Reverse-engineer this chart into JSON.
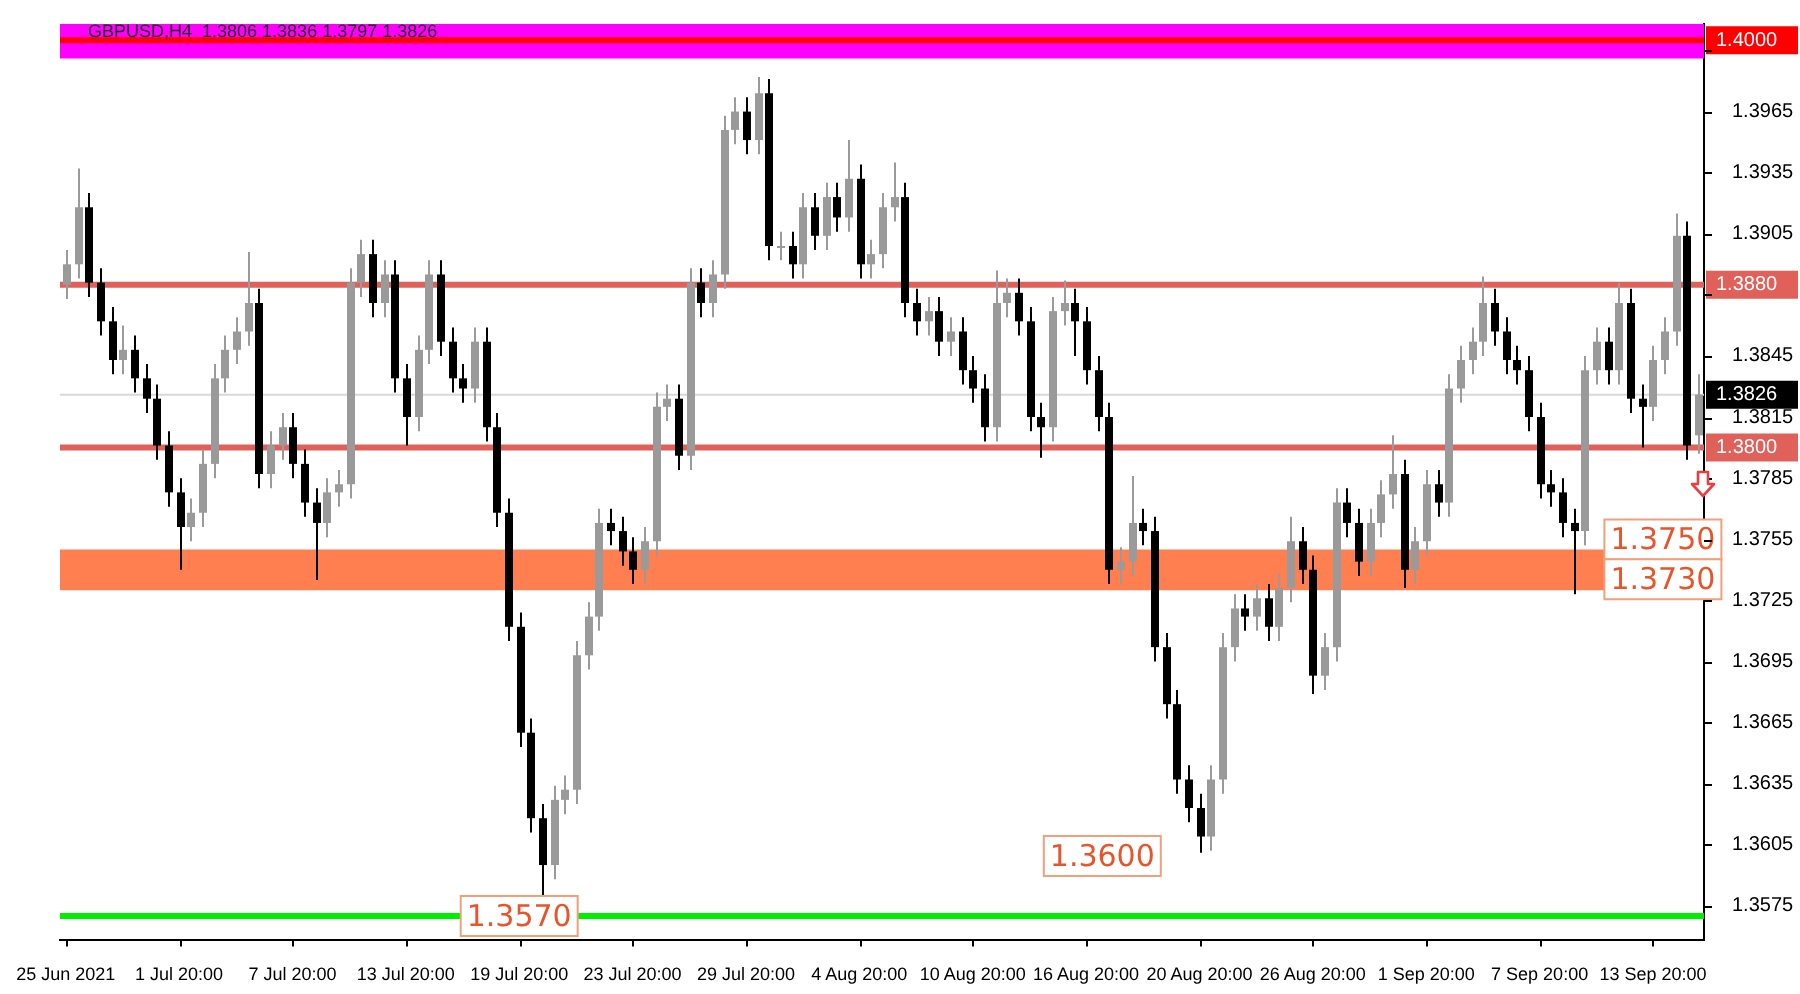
{
  "chart_data": {
    "type": "candlestick",
    "title": "GBPUSD,H4  1.3806 1.3836 1.3797 1.3826",
    "colors": [
      "#9a9a9a",
      "#9a9a9a",
      "#000000",
      "#000000",
      "#000000",
      "#9a9a9a",
      "#000000",
      "#000000",
      "#000000",
      "#000000",
      "#000000",
      "#9a9a9a",
      "#9a9a9a",
      "#9a9a9a",
      "#9a9a9a",
      "#9a9a9a",
      "#9a9a9a",
      "#000000",
      "#9a9a9a",
      "#9a9a9a",
      "#000000",
      "#000000",
      "#000000",
      "#9a9a9a",
      "#9a9a9a",
      "#9a9a9a",
      "#9a9a9a",
      "#000000",
      "#9a9a9a",
      "#000000",
      "#000000",
      "#9a9a9a",
      "#9a9a9a",
      "#000000",
      "#000000",
      "#000000",
      "#9a9a9a",
      "#000000",
      "#000000",
      "#000000",
      "#000000",
      "#000000",
      "#000000",
      "#9a9a9a",
      "#9a9a9a",
      "#9a9a9a",
      "#9a9a9a",
      "#9a9a9a",
      "#000000",
      "#000000",
      "#000000",
      "#9a9a9a",
      "#9a9a9a",
      "#9a9a9a",
      "#000000",
      "#9a9a9a",
      "#000000",
      "#9a9a9a",
      "#9a9a9a",
      "#9a9a9a",
      "#000000",
      "#9a9a9a",
      "#000000",
      "#9a9a9a",
      "#000000",
      "#9a9a9a",
      "#000000",
      "#9a9a9a",
      "#000000",
      "#9a9a9a",
      "#000000",
      "#9a9a9a",
      "#9a9a9a",
      "#9a9a9a",
      "#000000",
      "#000000",
      "#9a9a9a",
      "#000000",
      "#9a9a9a",
      "#000000",
      "#000000",
      "#000000",
      "#9a9a9a",
      "#9a9a9a",
      "#000000",
      "#000000",
      "#000000",
      "#9a9a9a",
      "#9a9a9a",
      "#000000",
      "#000000",
      "#000000",
      "#000000",
      "#9a9a9a",
      "#9a9a9a",
      "#000000",
      "#000000",
      "#000000",
      "#000000",
      "#000000",
      "#000000",
      "#9a9a9a",
      "#9a9a9a",
      "#9a9a9a",
      "#000000",
      "#9a9a9a",
      "#000000",
      "#9a9a9a",
      "#9a9a9a",
      "#000000",
      "#000000",
      "#9a9a9a",
      "#9a9a9a",
      "#000000",
      "#000000",
      "#9a9a9a",
      "#9a9a9a",
      "#9a9a9a",
      "#000000",
      "#9a9a9a",
      "#9a9a9a",
      "#000000",
      "#9a9a9a",
      "#9a9a9a",
      "#9a9a9a",
      "#9a9a9a",
      "#000000",
      "#000000",
      "#000000",
      "#000000",
      "#000000",
      "#000000",
      "#000000",
      "#000000",
      "#9a9a9a",
      "#9a9a9a",
      "#000000",
      "#9a9a9a",
      "#000000",
      "#000000",
      "#9a9a9a",
      "#9a9a9a",
      "#9a9a9a",
      "#000000",
      "#9a9a9a"
    ],
    "categories": [
      "25 Jun 2021",
      null,
      null,
      null,
      null,
      null,
      null,
      null,
      null,
      null,
      "1 Jul 20:00",
      null,
      null,
      null,
      null,
      null,
      null,
      null,
      null,
      null,
      "7 Jul 20:00",
      null,
      null,
      null,
      null,
      null,
      null,
      null,
      null,
      null,
      "13 Jul 20:00",
      null,
      null,
      null,
      null,
      null,
      null,
      null,
      null,
      null,
      "19 Jul 20:00",
      null,
      null,
      null,
      null,
      null,
      null,
      null,
      null,
      null,
      "23 Jul 20:00",
      null,
      null,
      null,
      null,
      null,
      null,
      null,
      null,
      null,
      "29 Jul 20:00",
      null,
      null,
      null,
      null,
      null,
      null,
      null,
      null,
      null,
      "4 Aug 20:00",
      null,
      null,
      null,
      null,
      null,
      null,
      null,
      null,
      null,
      "10 Aug 20:00",
      null,
      null,
      null,
      null,
      null,
      null,
      null,
      null,
      null,
      "16 Aug 20:00",
      null,
      null,
      null,
      null,
      null,
      null,
      null,
      null,
      null,
      "20 Aug 20:00",
      null,
      null,
      null,
      null,
      null,
      null,
      null,
      null,
      null,
      "26 Aug 20:00",
      null,
      null,
      null,
      null,
      null,
      null,
      null,
      null,
      null,
      "1 Sep 20:00",
      null,
      null,
      null,
      null,
      null,
      null,
      null,
      null,
      null,
      "7 Sep 20:00",
      null,
      null,
      null,
      null,
      null,
      null,
      null,
      null,
      null,
      "13 Sep 20:00",
      null,
      null,
      null,
      null
    ],
    "ohlc": [
      [
        1.388,
        1.3897,
        1.3873,
        1.389
      ],
      [
        1.389,
        1.3937,
        1.3883,
        1.3918
      ],
      [
        1.3918,
        1.3925,
        1.3874,
        1.3881
      ],
      [
        1.3881,
        1.3888,
        1.3855,
        1.3862
      ],
      [
        1.3862,
        1.3869,
        1.3836,
        1.3843
      ],
      [
        1.3843,
        1.386,
        1.3836,
        1.3848
      ],
      [
        1.3848,
        1.3855,
        1.3827,
        1.3834
      ],
      [
        1.3834,
        1.3841,
        1.3817,
        1.3824
      ],
      [
        1.3824,
        1.3831,
        1.3794,
        1.3801
      ],
      [
        1.3801,
        1.3808,
        1.3771,
        1.3778
      ],
      [
        1.3778,
        1.3785,
        1.374,
        1.3761
      ],
      [
        1.3761,
        1.3775,
        1.3754,
        1.3768
      ],
      [
        1.3768,
        1.3799,
        1.3761,
        1.3792
      ],
      [
        1.3792,
        1.3841,
        1.3785,
        1.3834
      ],
      [
        1.3834,
        1.3855,
        1.3827,
        1.3848
      ],
      [
        1.3848,
        1.3864,
        1.3841,
        1.3857
      ],
      [
        1.3857,
        1.3896,
        1.385,
        1.3871
      ],
      [
        1.3871,
        1.3878,
        1.378,
        1.3787
      ],
      [
        1.3787,
        1.3808,
        1.378,
        1.3801
      ],
      [
        1.3801,
        1.3817,
        1.3794,
        1.381
      ],
      [
        1.381,
        1.3817,
        1.3785,
        1.3792
      ],
      [
        1.3792,
        1.3799,
        1.3766,
        1.3773
      ],
      [
        1.3773,
        1.378,
        1.3735,
        1.3763
      ],
      [
        1.3763,
        1.3785,
        1.3756,
        1.3778
      ],
      [
        1.3778,
        1.3789,
        1.3771,
        1.3782
      ],
      [
        1.3782,
        1.3888,
        1.3775,
        1.3881
      ],
      [
        1.3881,
        1.3902,
        1.3874,
        1.3895
      ],
      [
        1.3895,
        1.3902,
        1.3864,
        1.3871
      ],
      [
        1.3871,
        1.3892,
        1.3864,
        1.3885
      ],
      [
        1.3885,
        1.3892,
        1.3827,
        1.3834
      ],
      [
        1.3834,
        1.3841,
        1.3801,
        1.3815
      ],
      [
        1.3815,
        1.3855,
        1.3808,
        1.3848
      ],
      [
        1.3848,
        1.3892,
        1.3841,
        1.3885
      ],
      [
        1.3885,
        1.3892,
        1.3845,
        1.3852
      ],
      [
        1.3852,
        1.3859,
        1.3827,
        1.3834
      ],
      [
        1.3834,
        1.3841,
        1.3822,
        1.3829
      ],
      [
        1.3829,
        1.3859,
        1.3822,
        1.3852
      ],
      [
        1.3852,
        1.3859,
        1.3803,
        1.381
      ],
      [
        1.381,
        1.3817,
        1.3761,
        1.3768
      ],
      [
        1.3768,
        1.3775,
        1.3705,
        1.3712
      ],
      [
        1.3712,
        1.3719,
        1.3653,
        1.366
      ],
      [
        1.366,
        1.3667,
        1.3611,
        1.3618
      ],
      [
        1.3618,
        1.3625,
        1.358,
        1.3595
      ],
      [
        1.3595,
        1.3634,
        1.3588,
        1.3627
      ],
      [
        1.3627,
        1.3639,
        1.362,
        1.3632
      ],
      [
        1.3632,
        1.3705,
        1.3625,
        1.3698
      ],
      [
        1.3698,
        1.3724,
        1.3691,
        1.3717
      ],
      [
        1.3717,
        1.377,
        1.371,
        1.3763
      ],
      [
        1.3763,
        1.377,
        1.3752,
        1.3759
      ],
      [
        1.3759,
        1.3766,
        1.3742,
        1.3749
      ],
      [
        1.3749,
        1.3756,
        1.3733,
        1.374
      ],
      [
        1.374,
        1.3761,
        1.3733,
        1.3754
      ],
      [
        1.3754,
        1.3827,
        1.3747,
        1.382
      ],
      [
        1.382,
        1.3831,
        1.3813,
        1.3824
      ],
      [
        1.3824,
        1.3831,
        1.3789,
        1.3796
      ],
      [
        1.3796,
        1.3888,
        1.3789,
        1.3881
      ],
      [
        1.3881,
        1.3888,
        1.3864,
        1.3871
      ],
      [
        1.3871,
        1.3892,
        1.3864,
        1.3885
      ],
      [
        1.3885,
        1.3963,
        1.3878,
        1.3956
      ],
      [
        1.3956,
        1.3972,
        1.3949,
        1.3965
      ],
      [
        1.3965,
        1.3972,
        1.3944,
        1.3951
      ],
      [
        1.3951,
        1.3982,
        1.3944,
        1.3974
      ],
      [
        1.3974,
        1.3981,
        1.3892,
        1.3899
      ],
      [
        1.3899,
        1.3906,
        1.3892,
        1.3899
      ],
      [
        1.3899,
        1.3906,
        1.3883,
        1.389
      ],
      [
        1.389,
        1.3925,
        1.3883,
        1.3918
      ],
      [
        1.3918,
        1.3925,
        1.3897,
        1.3904
      ],
      [
        1.3904,
        1.393,
        1.3897,
        1.3923
      ],
      [
        1.3923,
        1.393,
        1.3906,
        1.3913
      ],
      [
        1.3913,
        1.3951,
        1.3906,
        1.3932
      ],
      [
        1.3932,
        1.3939,
        1.3883,
        1.389
      ],
      [
        1.389,
        1.3902,
        1.3883,
        1.3895
      ],
      [
        1.3895,
        1.3925,
        1.3888,
        1.3918
      ],
      [
        1.3918,
        1.394,
        1.3911,
        1.3923
      ],
      [
        1.3923,
        1.393,
        1.3864,
        1.3871
      ],
      [
        1.3871,
        1.3878,
        1.3855,
        1.3862
      ],
      [
        1.3862,
        1.3874,
        1.3855,
        1.3867
      ],
      [
        1.3867,
        1.3874,
        1.3845,
        1.3852
      ],
      [
        1.3852,
        1.3864,
        1.3845,
        1.3857
      ],
      [
        1.3857,
        1.3864,
        1.3831,
        1.3838
      ],
      [
        1.3838,
        1.3845,
        1.3822,
        1.3829
      ],
      [
        1.3829,
        1.3836,
        1.3803,
        1.381
      ],
      [
        1.381,
        1.3887,
        1.3803,
        1.3871
      ],
      [
        1.3871,
        1.3883,
        1.3864,
        1.3876
      ],
      [
        1.3876,
        1.3883,
        1.3855,
        1.3862
      ],
      [
        1.3862,
        1.3869,
        1.3808,
        1.3815
      ],
      [
        1.3815,
        1.3822,
        1.3795,
        1.381
      ],
      [
        1.381,
        1.3874,
        1.3803,
        1.3867
      ],
      [
        1.3867,
        1.3882,
        1.386,
        1.3871
      ],
      [
        1.3871,
        1.3878,
        1.3845,
        1.3862
      ],
      [
        1.3862,
        1.3869,
        1.3831,
        1.3838
      ],
      [
        1.3838,
        1.3845,
        1.3808,
        1.3815
      ],
      [
        1.3815,
        1.3822,
        1.3733,
        1.374
      ],
      [
        1.374,
        1.3751,
        1.3733,
        1.3744
      ],
      [
        1.3744,
        1.3786,
        1.3737,
        1.3763
      ],
      [
        1.3763,
        1.377,
        1.3752,
        1.3759
      ],
      [
        1.3759,
        1.3766,
        1.3695,
        1.3702
      ],
      [
        1.3702,
        1.3709,
        1.3667,
        1.3674
      ],
      [
        1.3674,
        1.3681,
        1.363,
        1.3637
      ],
      [
        1.3637,
        1.3644,
        1.3616,
        1.3623
      ],
      [
        1.3623,
        1.363,
        1.3601,
        1.3609
      ],
      [
        1.3609,
        1.3644,
        1.3602,
        1.3637
      ],
      [
        1.3637,
        1.3709,
        1.363,
        1.3702
      ],
      [
        1.3702,
        1.3728,
        1.3695,
        1.3721
      ],
      [
        1.3721,
        1.3728,
        1.371,
        1.3717
      ],
      [
        1.3717,
        1.3733,
        1.371,
        1.3726
      ],
      [
        1.3726,
        1.3733,
        1.3705,
        1.3712
      ],
      [
        1.3712,
        1.3738,
        1.3705,
        1.3731
      ],
      [
        1.3731,
        1.3766,
        1.3724,
        1.3754
      ],
      [
        1.3754,
        1.3761,
        1.3733,
        1.374
      ],
      [
        1.374,
        1.3747,
        1.3679,
        1.3688
      ],
      [
        1.3688,
        1.3709,
        1.3681,
        1.3702
      ],
      [
        1.3702,
        1.378,
        1.3695,
        1.3773
      ],
      [
        1.3773,
        1.378,
        1.3756,
        1.3763
      ],
      [
        1.3763,
        1.377,
        1.3737,
        1.3744
      ],
      [
        1.3744,
        1.377,
        1.3737,
        1.3763
      ],
      [
        1.3763,
        1.3784,
        1.3756,
        1.3777
      ],
      [
        1.3777,
        1.3806,
        1.377,
        1.3787
      ],
      [
        1.3787,
        1.3794,
        1.3731,
        1.374
      ],
      [
        1.374,
        1.3761,
        1.3733,
        1.3754
      ],
      [
        1.3754,
        1.3789,
        1.3747,
        1.3782
      ],
      [
        1.3782,
        1.3789,
        1.3766,
        1.3773
      ],
      [
        1.3773,
        1.3836,
        1.3766,
        1.3829
      ],
      [
        1.3829,
        1.385,
        1.3822,
        1.3843
      ],
      [
        1.3843,
        1.3859,
        1.3836,
        1.3852
      ],
      [
        1.3852,
        1.3884,
        1.3845,
        1.3871
      ],
      [
        1.3871,
        1.3878,
        1.385,
        1.3857
      ],
      [
        1.3857,
        1.3864,
        1.3836,
        1.3843
      ],
      [
        1.3843,
        1.385,
        1.3831,
        1.3838
      ],
      [
        1.3838,
        1.3845,
        1.3808,
        1.3815
      ],
      [
        1.3815,
        1.3822,
        1.3775,
        1.3782
      ],
      [
        1.3782,
        1.3789,
        1.3771,
        1.3778
      ],
      [
        1.3778,
        1.3785,
        1.3756,
        1.3763
      ],
      [
        1.3763,
        1.377,
        1.3728,
        1.3759
      ],
      [
        1.3759,
        1.3845,
        1.3752,
        1.3838
      ],
      [
        1.3838,
        1.3859,
        1.3831,
        1.3852
      ],
      [
        1.3852,
        1.3859,
        1.3831,
        1.3838
      ],
      [
        1.3838,
        1.3881,
        1.3831,
        1.3871
      ],
      [
        1.3871,
        1.3878,
        1.3817,
        1.3824
      ],
      [
        1.3824,
        1.3831,
        1.38,
        1.382
      ],
      [
        1.382,
        1.385,
        1.3813,
        1.3843
      ],
      [
        1.3843,
        1.3864,
        1.3836,
        1.3857
      ],
      [
        1.3857,
        1.3915,
        1.385,
        1.3904
      ],
      [
        1.3904,
        1.3911,
        1.3794,
        1.3801
      ],
      [
        1.3806,
        1.3836,
        1.3797,
        1.3826
      ]
    ],
    "ylim": [
      1.3558,
      1.4008
    ],
    "yticks": [
      1.3575,
      1.3605,
      1.3635,
      1.3665,
      1.3695,
      1.3725,
      1.3755,
      1.3785,
      1.3815,
      1.3845,
      {
        "value": 1.3875,
        "label": null
      },
      1.3905,
      1.3935,
      1.3965,
      {
        "value": 1.3995,
        "label": null
      }
    ],
    "ref_lines": [
      {
        "axis": "y",
        "value": 1.4,
        "label": "1.4000",
        "color": "#ff0000"
      },
      {
        "axis": "y",
        "value": 1.388,
        "label": "1.3880",
        "color": "#e0605a"
      },
      {
        "axis": "y",
        "value": 1.3826,
        "label": "1.3826",
        "color": "#d8d8d8"
      },
      {
        "axis": "y",
        "value": 1.38,
        "label": "1.3800",
        "color": "#e0605a"
      },
      {
        "axis": "y",
        "value": 1.357,
        "color": "#00ee00"
      }
    ],
    "bands": [
      {
        "axis": "y",
        "from": 1.3991,
        "to": 1.4008,
        "color": "#ff00ff"
      },
      {
        "axis": "y",
        "from": 1.373,
        "to": 1.375,
        "color": "#ff7f50"
      }
    ],
    "annotations": [
      {
        "text": "1.3570",
        "x": "19 Jul 20:00",
        "y": 1.357
      },
      "1.3600",
      "1.3750",
      "1.3730"
    ]
  }
}
